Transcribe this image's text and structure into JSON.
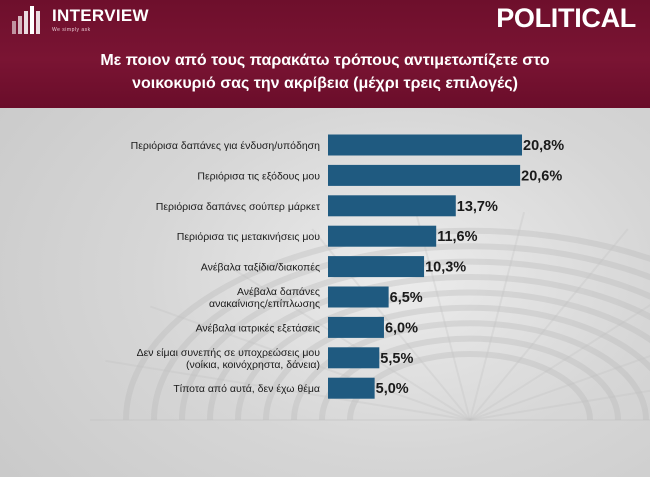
{
  "header": {
    "brand": "INTERVIEW",
    "tagline": "We simply ask",
    "publisher": "POLITICAL",
    "title_lines": [
      "Με ποιον από τους παρακάτω τρόπους αντιμετωπίζετε στο",
      "νοικοκυριό σας την ακρίβεια (μέχρι τρεις επιλογές)"
    ]
  },
  "colors": {
    "header": "#74112f",
    "bar": "#1f5a80",
    "text": "#1a1a1a"
  },
  "chart_data": {
    "type": "bar",
    "orientation": "horizontal",
    "categories": [
      [
        "Περιόρισα δαπάνες για ένδυση/υπόδηση"
      ],
      [
        "Περιόρισα τις εξόδους μου"
      ],
      [
        "Περιόρισα δαπάνες σούπερ μάρκετ"
      ],
      [
        "Περιόρισα τις μετακινήσεις μου"
      ],
      [
        "Ανέβαλα ταξίδια/διακοπές"
      ],
      [
        "Ανέβαλα δαπάνες",
        "ανακαίνισης/επίπλωσης"
      ],
      [
        "Ανέβαλα ιατρικές εξετάσεις"
      ],
      [
        "Δεν είμαι συνεπής σε υποχρεώσεις μου",
        "(νοίκια, κοινόχρηστα, δάνεια)"
      ],
      [
        "Τίποτα από αυτά, δεν έχω θέμα"
      ]
    ],
    "values": [
      20.8,
      20.6,
      13.7,
      11.6,
      10.3,
      6.5,
      6.0,
      5.5,
      5.0
    ],
    "value_labels": [
      "20,8%",
      "20,6%",
      "13,7%",
      "11,6%",
      "10,3%",
      "6,5%",
      "6,0%",
      "5,5%",
      "5,0%"
    ],
    "xlim": [
      0,
      20.8
    ],
    "grid": false,
    "legend": "none"
  }
}
